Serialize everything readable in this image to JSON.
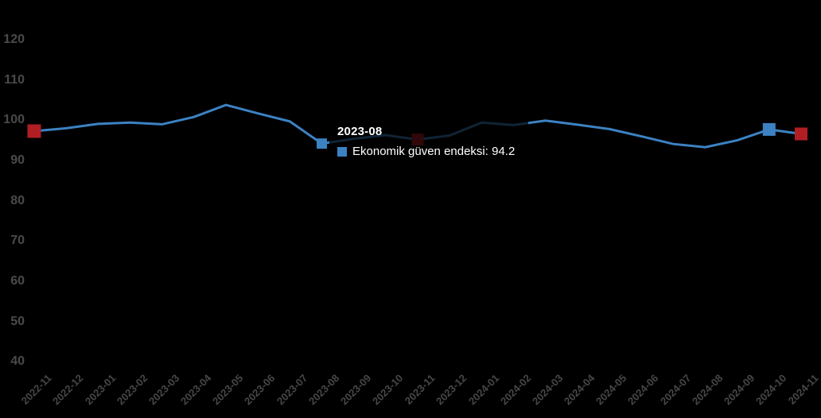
{
  "background_color": "#000000",
  "tooltip": {
    "title": "2023-08",
    "series_label": "Ekonomik güven endeksi:",
    "value": "94.2",
    "symbol_color": "#3c82c3",
    "symbol": "series-color-square"
  },
  "chart_data": {
    "type": "line",
    "title": "",
    "xlabel": "",
    "ylabel": "",
    "categories": [
      "2022-11",
      "2022-12",
      "2023-01",
      "2023-02",
      "2023-03",
      "2023-04",
      "2023-05",
      "2023-06",
      "2023-07",
      "2023-08",
      "2023-09",
      "2023-10",
      "2023-11",
      "2023-12",
      "2024-01",
      "2024-02",
      "2024-03",
      "2024-04",
      "2024-05",
      "2024-06",
      "2024-07",
      "2024-08",
      "2024-09",
      "2024-10",
      "2024-11"
    ],
    "series": [
      {
        "name": "Ekonomik güven endeksi",
        "color": "#3c82c3",
        "values": [
          97.3,
          98.0,
          99.1,
          99.4,
          99.0,
          100.8,
          103.8,
          101.7,
          99.7,
          94.2,
          95.4,
          96.3,
          95.2,
          96.2,
          99.4,
          98.8,
          99.9,
          98.9,
          97.8,
          96.0,
          94.1,
          93.3,
          95.0,
          97.7,
          96.6
        ]
      }
    ],
    "ylim": [
      40,
      120
    ],
    "yticks": [
      120,
      110,
      100,
      90,
      80,
      70,
      60,
      50,
      40
    ],
    "grid": false,
    "legend_position": "none",
    "x_label_rotation": -45,
    "axis_label_color": "#4a4a4a",
    "hovered_category": "2023-08",
    "highlighted_points": [
      {
        "category": "2022-11",
        "index": 0,
        "color": "#b01e24",
        "size": 17
      },
      {
        "category": "2023-08",
        "index": 9,
        "color": "#3c82c3",
        "size": 13
      },
      {
        "category": "2023-11",
        "index": 12,
        "color": "#b01e24",
        "size": 15
      },
      {
        "category": "2024-10",
        "index": 23,
        "color": "#3c82c3",
        "size": 16
      },
      {
        "category": "2024-11",
        "index": 24,
        "color": "#b01e24",
        "size": 16
      }
    ]
  }
}
